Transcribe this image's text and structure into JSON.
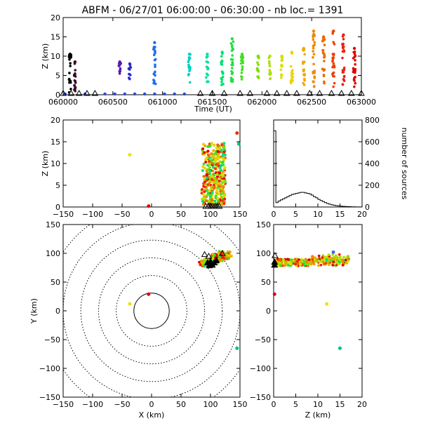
{
  "title": "ABFM - 06/27/01 06:00:00 - 06:30:00 - nb loc.=   1391",
  "chart_data": [
    {
      "type": "scatter",
      "name_key": "time-height",
      "xlabel": "Time (UT)",
      "ylabel": "Z (km)",
      "xlim": [
        60000,
        63000
      ],
      "ylim": [
        0,
        20
      ],
      "xticks": [
        "060000",
        "060500",
        "061000",
        "061500",
        "062000",
        "062500",
        "063000"
      ],
      "yticks": [
        "0",
        "5",
        "10",
        "15",
        "20"
      ],
      "columns": [
        {
          "t": 60070,
          "zmin": 0.5,
          "zmax": 10.5,
          "color": "#000000"
        },
        {
          "t": 60120,
          "zmin": 0.5,
          "zmax": 8.5,
          "color": "#3a0a2a"
        },
        {
          "t": 60570,
          "zmin": 5.0,
          "zmax": 8.5,
          "color": "#5a1ab0"
        },
        {
          "t": 60670,
          "zmin": 4.0,
          "zmax": 8.0,
          "color": "#2a2ad0"
        },
        {
          "t": 60920,
          "zmin": 2.0,
          "zmax": 13.5,
          "color": "#1e6ef0"
        },
        {
          "t": 61270,
          "zmin": 3.0,
          "zmax": 10.5,
          "color": "#00d0c8"
        },
        {
          "t": 61450,
          "zmin": 3.0,
          "zmax": 10.5,
          "color": "#00e0a0"
        },
        {
          "t": 61600,
          "zmin": 2.5,
          "zmax": 11.0,
          "color": "#00e070"
        },
        {
          "t": 61700,
          "zmin": 3.0,
          "zmax": 14.5,
          "color": "#20e040"
        },
        {
          "t": 61800,
          "zmin": 3.5,
          "zmax": 10.5,
          "color": "#40e020"
        },
        {
          "t": 61960,
          "zmin": 4.0,
          "zmax": 10.0,
          "color": "#80e000"
        },
        {
          "t": 62080,
          "zmin": 4.0,
          "zmax": 10.0,
          "color": "#b0e000"
        },
        {
          "t": 62200,
          "zmin": 2.5,
          "zmax": 10.0,
          "color": "#d8e000"
        },
        {
          "t": 62300,
          "zmin": 3.0,
          "zmax": 11.0,
          "color": "#f0d000"
        },
        {
          "t": 62420,
          "zmin": 2.0,
          "zmax": 12.0,
          "color": "#f0a800"
        },
        {
          "t": 62520,
          "zmin": 2.0,
          "zmax": 16.5,
          "color": "#f08800"
        },
        {
          "t": 62620,
          "zmin": 2.0,
          "zmax": 15.0,
          "color": "#f06800"
        },
        {
          "t": 62720,
          "zmin": 2.0,
          "zmax": 16.5,
          "color": "#f04000"
        },
        {
          "t": 62820,
          "zmin": 2.0,
          "zmax": 15.5,
          "color": "#f02010"
        },
        {
          "t": 62930,
          "zmin": 2.0,
          "zmax": 12.0,
          "color": "#e00000"
        }
      ],
      "ground_markers": [
        60000,
        60080,
        60160,
        60240,
        60320,
        61380,
        61500,
        61620,
        61780,
        61880,
        62050,
        62150,
        62250,
        62350,
        62480,
        62580,
        62700,
        62800,
        62900,
        63000
      ],
      "ground_dots": [
        60020,
        60220,
        60420,
        60520,
        60620,
        60720,
        60820,
        60920,
        61020,
        61120,
        61220
      ]
    },
    {
      "type": "scatter",
      "name_key": "x-z",
      "xlabel": "",
      "ylabel": "Z (km)",
      "xlim": [
        -150,
        150
      ],
      "ylim": [
        0,
        20
      ],
      "xticks": [
        "−150",
        "−100",
        "−50",
        "0",
        "50",
        "100",
        "150"
      ],
      "yticks": [
        "0",
        "5",
        "10",
        "15",
        "20"
      ],
      "cluster": {
        "xmin": 85,
        "xmax": 125,
        "zmin": 0.5,
        "zmax": 15.5
      },
      "outliers": [
        {
          "x": -37,
          "z": 12,
          "color": "#f0e000"
        },
        {
          "x": -5,
          "z": 0.2,
          "color": "#e00000"
        },
        {
          "x": 145,
          "z": 17,
          "color": "#e03000"
        },
        {
          "x": 148,
          "z": 14.5,
          "color": "#00c080"
        }
      ],
      "ground_markers_x": [
        92,
        96,
        100,
        103,
        106,
        109,
        112,
        115
      ]
    },
    {
      "type": "bar",
      "name_key": "histogram",
      "xlabel": "",
      "ylabel": "number of sources",
      "xlim": [
        0,
        20
      ],
      "ylim": [
        0,
        800
      ],
      "xticks": [
        "0",
        "5",
        "10",
        "15",
        "20"
      ],
      "yticks": [
        "0",
        "200",
        "400",
        "600",
        "800"
      ],
      "bins_start": 0,
      "bin_width": 0.5,
      "values": [
        700,
        40,
        55,
        65,
        75,
        85,
        95,
        105,
        115,
        120,
        125,
        130,
        135,
        135,
        130,
        125,
        120,
        110,
        95,
        85,
        70,
        60,
        50,
        40,
        32,
        26,
        20,
        16,
        12,
        10,
        8,
        6,
        5,
        4,
        3,
        2,
        2,
        1,
        1,
        1
      ]
    },
    {
      "type": "scatter",
      "name_key": "x-y",
      "xlabel": "X (km)",
      "ylabel": "Y (km)",
      "xlim": [
        -150,
        150
      ],
      "ylim": [
        -150,
        150
      ],
      "xticks": [
        "−150",
        "−100",
        "−50",
        "0",
        "50",
        "100",
        "150"
      ],
      "yticks": [
        "−150",
        "−100",
        "−50",
        "0",
        "50",
        "100",
        "150"
      ],
      "range_rings_km": [
        30,
        60,
        90,
        120,
        150,
        180
      ],
      "cluster": {
        "x0": 80,
        "y0": 76,
        "x1": 148,
        "y1": 104
      },
      "outliers": [
        {
          "x": -37,
          "y": 12,
          "color": "#f0e000"
        },
        {
          "x": -5,
          "y": 29,
          "color": "#e00000"
        },
        {
          "x": 145,
          "y": -65,
          "color": "#00c080"
        }
      ],
      "stations": [
        [
          95,
          84
        ],
        [
          100,
          86
        ],
        [
          103,
          80
        ],
        [
          106,
          84
        ],
        [
          110,
          88
        ],
        [
          98,
          79
        ],
        [
          90,
          98
        ],
        [
          97,
          95
        ],
        [
          120,
          100
        ]
      ]
    },
    {
      "type": "scatter",
      "name_key": "z-y",
      "xlabel": "Z (km)",
      "ylabel": "",
      "xlim": [
        0,
        20
      ],
      "ylim": [
        -150,
        150
      ],
      "xticks": [
        "0",
        "5",
        "10",
        "15",
        "20"
      ],
      "yticks": [
        "−150",
        "−100",
        "−50",
        "0",
        "50",
        "100",
        "150"
      ],
      "cluster": {
        "zmin": 0.5,
        "zmax": 17,
        "ymin": 76,
        "ymax": 104
      },
      "outliers": [
        {
          "z": 12,
          "y": 12,
          "color": "#f0e000"
        },
        {
          "z": 0.2,
          "y": 29,
          "color": "#e00000"
        },
        {
          "z": 15,
          "y": -65,
          "color": "#00c080"
        },
        {
          "z": 13.5,
          "y": 102,
          "color": "#3070f0"
        }
      ]
    }
  ]
}
